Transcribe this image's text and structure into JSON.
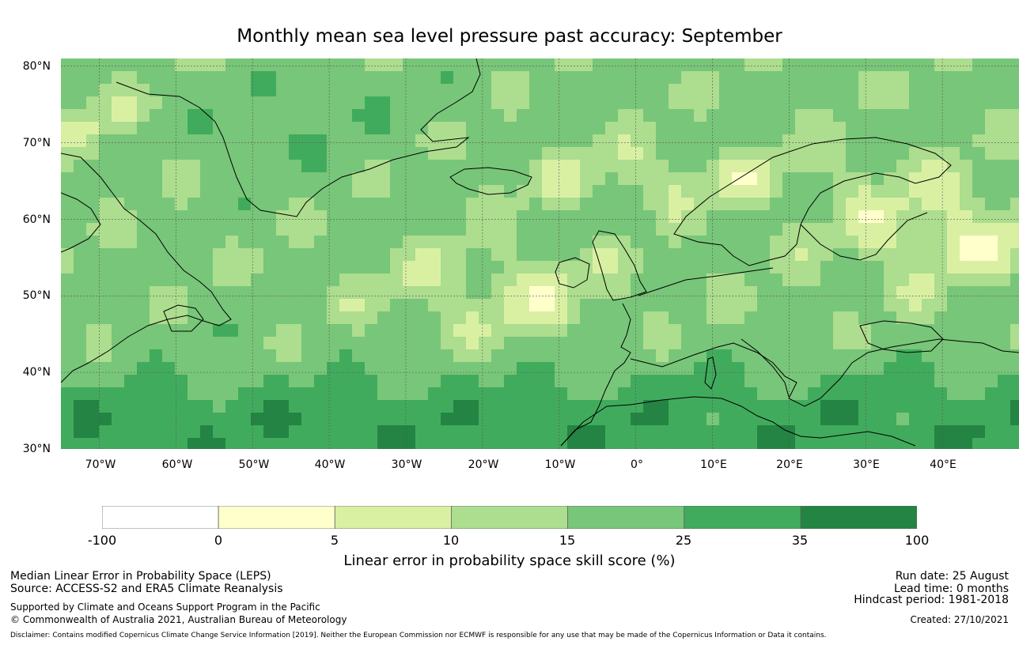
{
  "title": "Monthly mean sea level pressure past accuracy: September",
  "map": {
    "lat_labels": [
      "80°N",
      "70°N",
      "60°N",
      "50°N",
      "40°N",
      "30°N"
    ],
    "lon_labels": [
      "70°W",
      "60°W",
      "50°W",
      "40°W",
      "30°W",
      "20°W",
      "10°W",
      "0°",
      "10°E",
      "20°E",
      "30°E",
      "40°E"
    ],
    "extent": {
      "lon_min": -75,
      "lon_max": 50,
      "lat_min": 30,
      "lat_max": 81
    },
    "gridlines": true
  },
  "colorbar": {
    "boundaries": [
      "-100",
      "0",
      "5",
      "10",
      "15",
      "25",
      "35",
      "100"
    ],
    "colors": [
      "#ffffff",
      "#ffffcc",
      "#d9f0a3",
      "#addd8e",
      "#78c679",
      "#41ab5d",
      "#238443"
    ],
    "label": "Linear error in probability space skill score (%)"
  },
  "footer": {
    "left": {
      "line1": "Median Linear Error in Probability Space (LEPS)",
      "line2": "Source: ACCESS-S2 and ERA5 Climate Reanalysis",
      "line3": "Supported by Climate and Oceans Support Program in the Pacific",
      "line4": "© Commonwealth of Australia 2021, Australian Bureau of Meteorology"
    },
    "right": {
      "run_date": "Run date: 25 August",
      "lead_time": "Lead time: 0 months",
      "hindcast": "Hindcast period: 1981-2018",
      "created": "Created: 27/10/2021"
    },
    "disclaimer": "Disclaimer: Contains modified Copernicus Climate Change Service Information [2019]. Neither the European Commission nor ECMWF is responsible for any use that may be made of the Copernicus Information or Data it contains."
  }
}
